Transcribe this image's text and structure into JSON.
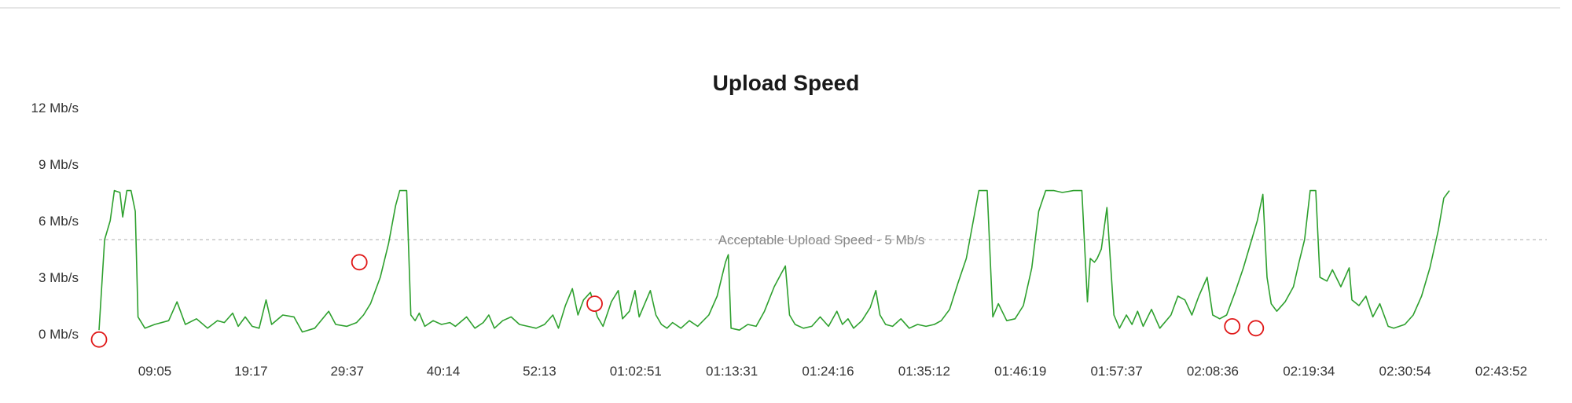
{
  "chart_data": {
    "type": "line",
    "title": "Upload Speed",
    "xlabel": "",
    "ylabel": "",
    "y_ticks": [
      "0 Mb/s",
      "3 Mb/s",
      "6 Mb/s",
      "9 Mb/s",
      "12 Mb/s"
    ],
    "ylim": [
      0,
      12
    ],
    "x_ticks": [
      "09:05",
      "19:17",
      "29:37",
      "40:14",
      "52:13",
      "01:02:51",
      "01:13:31",
      "01:24:16",
      "01:35:12",
      "01:46:19",
      "01:57:37",
      "02:08:36",
      "02:19:34",
      "02:30:54",
      "02:43:52"
    ],
    "x_range_seconds": [
      0,
      10400
    ],
    "grid": false,
    "legend": "none",
    "reference_line": {
      "value": 5,
      "label": "Acceptable Upload Speed - 5 Mb/s"
    },
    "series": [
      {
        "color": "#2ea02e",
        "points": [
          [
            0,
            0.2
          ],
          [
            40,
            5.0
          ],
          [
            80,
            6.0
          ],
          [
            110,
            7.6
          ],
          [
            150,
            7.5
          ],
          [
            170,
            6.2
          ],
          [
            200,
            7.6
          ],
          [
            230,
            7.6
          ],
          [
            260,
            6.5
          ],
          [
            280,
            0.9
          ],
          [
            330,
            0.3
          ],
          [
            400,
            0.5
          ],
          [
            500,
            0.7
          ],
          [
            560,
            1.7
          ],
          [
            620,
            0.5
          ],
          [
            700,
            0.8
          ],
          [
            780,
            0.3
          ],
          [
            850,
            0.7
          ],
          [
            900,
            0.6
          ],
          [
            960,
            1.1
          ],
          [
            1000,
            0.4
          ],
          [
            1050,
            0.9
          ],
          [
            1100,
            0.4
          ],
          [
            1150,
            0.3
          ],
          [
            1200,
            1.8
          ],
          [
            1240,
            0.5
          ],
          [
            1320,
            1.0
          ],
          [
            1400,
            0.9
          ],
          [
            1460,
            0.1
          ],
          [
            1550,
            0.3
          ],
          [
            1650,
            1.2
          ],
          [
            1700,
            0.5
          ],
          [
            1780,
            0.4
          ],
          [
            1850,
            0.6
          ],
          [
            1900,
            1.0
          ],
          [
            1950,
            1.6
          ],
          [
            2020,
            3.0
          ],
          [
            2080,
            4.8
          ],
          [
            2130,
            6.8
          ],
          [
            2160,
            7.6
          ],
          [
            2210,
            7.6
          ],
          [
            2240,
            1.0
          ],
          [
            2270,
            0.7
          ],
          [
            2300,
            1.1
          ],
          [
            2340,
            0.4
          ],
          [
            2400,
            0.7
          ],
          [
            2460,
            0.5
          ],
          [
            2520,
            0.6
          ],
          [
            2560,
            0.4
          ],
          [
            2640,
            0.9
          ],
          [
            2700,
            0.3
          ],
          [
            2760,
            0.6
          ],
          [
            2800,
            1.0
          ],
          [
            2840,
            0.3
          ],
          [
            2900,
            0.7
          ],
          [
            2960,
            0.9
          ],
          [
            3020,
            0.5
          ],
          [
            3080,
            0.4
          ],
          [
            3140,
            0.3
          ],
          [
            3200,
            0.5
          ],
          [
            3260,
            1.0
          ],
          [
            3300,
            0.3
          ],
          [
            3350,
            1.5
          ],
          [
            3400,
            2.4
          ],
          [
            3440,
            1.0
          ],
          [
            3480,
            1.8
          ],
          [
            3530,
            2.2
          ],
          [
            3580,
            0.9
          ],
          [
            3620,
            0.4
          ],
          [
            3680,
            1.7
          ],
          [
            3730,
            2.3
          ],
          [
            3760,
            0.8
          ],
          [
            3810,
            1.2
          ],
          [
            3850,
            2.3
          ],
          [
            3880,
            0.9
          ],
          [
            3920,
            1.6
          ],
          [
            3960,
            2.3
          ],
          [
            4000,
            1.0
          ],
          [
            4040,
            0.5
          ],
          [
            4080,
            0.3
          ],
          [
            4120,
            0.6
          ],
          [
            4180,
            0.3
          ],
          [
            4240,
            0.7
          ],
          [
            4300,
            0.4
          ],
          [
            4380,
            1.0
          ],
          [
            4440,
            2.0
          ],
          [
            4500,
            3.8
          ],
          [
            4520,
            4.2
          ],
          [
            4540,
            0.3
          ],
          [
            4600,
            0.2
          ],
          [
            4660,
            0.5
          ],
          [
            4720,
            0.4
          ],
          [
            4780,
            1.2
          ],
          [
            4850,
            2.5
          ],
          [
            4900,
            3.2
          ],
          [
            4930,
            3.6
          ],
          [
            4960,
            1.0
          ],
          [
            5000,
            0.5
          ],
          [
            5060,
            0.3
          ],
          [
            5120,
            0.4
          ],
          [
            5180,
            0.9
          ],
          [
            5240,
            0.4
          ],
          [
            5300,
            1.2
          ],
          [
            5340,
            0.5
          ],
          [
            5380,
            0.8
          ],
          [
            5420,
            0.3
          ],
          [
            5480,
            0.7
          ],
          [
            5540,
            1.4
          ],
          [
            5580,
            2.3
          ],
          [
            5610,
            1.0
          ],
          [
            5650,
            0.5
          ],
          [
            5700,
            0.4
          ],
          [
            5760,
            0.8
          ],
          [
            5820,
            0.3
          ],
          [
            5880,
            0.5
          ],
          [
            5940,
            0.4
          ],
          [
            6000,
            0.5
          ],
          [
            6050,
            0.7
          ],
          [
            6110,
            1.3
          ],
          [
            6170,
            2.7
          ],
          [
            6230,
            4.0
          ],
          [
            6280,
            6.0
          ],
          [
            6320,
            7.6
          ],
          [
            6380,
            7.6
          ],
          [
            6420,
            0.9
          ],
          [
            6460,
            1.6
          ],
          [
            6520,
            0.7
          ],
          [
            6580,
            0.8
          ],
          [
            6640,
            1.5
          ],
          [
            6700,
            3.5
          ],
          [
            6750,
            6.5
          ],
          [
            6800,
            7.6
          ],
          [
            6860,
            7.6
          ],
          [
            6920,
            7.5
          ],
          [
            7000,
            7.6
          ],
          [
            7060,
            7.6
          ],
          [
            7100,
            1.7
          ],
          [
            7120,
            4.0
          ],
          [
            7150,
            3.8
          ],
          [
            7170,
            4.0
          ],
          [
            7200,
            4.5
          ],
          [
            7240,
            6.7
          ],
          [
            7290,
            1.0
          ],
          [
            7330,
            0.3
          ],
          [
            7380,
            1.0
          ],
          [
            7420,
            0.5
          ],
          [
            7460,
            1.2
          ],
          [
            7500,
            0.4
          ],
          [
            7560,
            1.3
          ],
          [
            7620,
            0.3
          ],
          [
            7700,
            1.0
          ],
          [
            7750,
            2.0
          ],
          [
            7800,
            1.8
          ],
          [
            7850,
            1.0
          ],
          [
            7900,
            2.0
          ],
          [
            7960,
            3.0
          ],
          [
            8000,
            1.0
          ],
          [
            8050,
            0.8
          ],
          [
            8100,
            1.0
          ],
          [
            8160,
            2.2
          ],
          [
            8220,
            3.5
          ],
          [
            8280,
            5.0
          ],
          [
            8320,
            6.0
          ],
          [
            8360,
            7.4
          ],
          [
            8390,
            3.0
          ],
          [
            8420,
            1.6
          ],
          [
            8460,
            1.2
          ],
          [
            8520,
            1.7
          ],
          [
            8580,
            2.5
          ],
          [
            8620,
            3.8
          ],
          [
            8660,
            5.0
          ],
          [
            8700,
            7.6
          ],
          [
            8740,
            7.6
          ],
          [
            8770,
            3.0
          ],
          [
            8820,
            2.8
          ],
          [
            8860,
            3.4
          ],
          [
            8920,
            2.5
          ],
          [
            8980,
            3.5
          ],
          [
            9000,
            1.8
          ],
          [
            9050,
            1.5
          ],
          [
            9100,
            2.0
          ],
          [
            9150,
            0.9
          ],
          [
            9200,
            1.6
          ],
          [
            9260,
            0.4
          ],
          [
            9300,
            0.3
          ],
          [
            9340,
            0.4
          ],
          [
            9380,
            0.5
          ],
          [
            9440,
            1.0
          ],
          [
            9500,
            2.0
          ],
          [
            9560,
            3.5
          ],
          [
            9620,
            5.5
          ],
          [
            9660,
            7.2
          ],
          [
            9700,
            7.6
          ]
        ]
      }
    ],
    "markers": [
      {
        "x": 0,
        "y": -0.3
      },
      {
        "x": 1870,
        "y": 3.8
      },
      {
        "x": 3560,
        "y": 1.6
      },
      {
        "x": 8140,
        "y": 0.4
      },
      {
        "x": 8310,
        "y": 0.3
      }
    ]
  }
}
